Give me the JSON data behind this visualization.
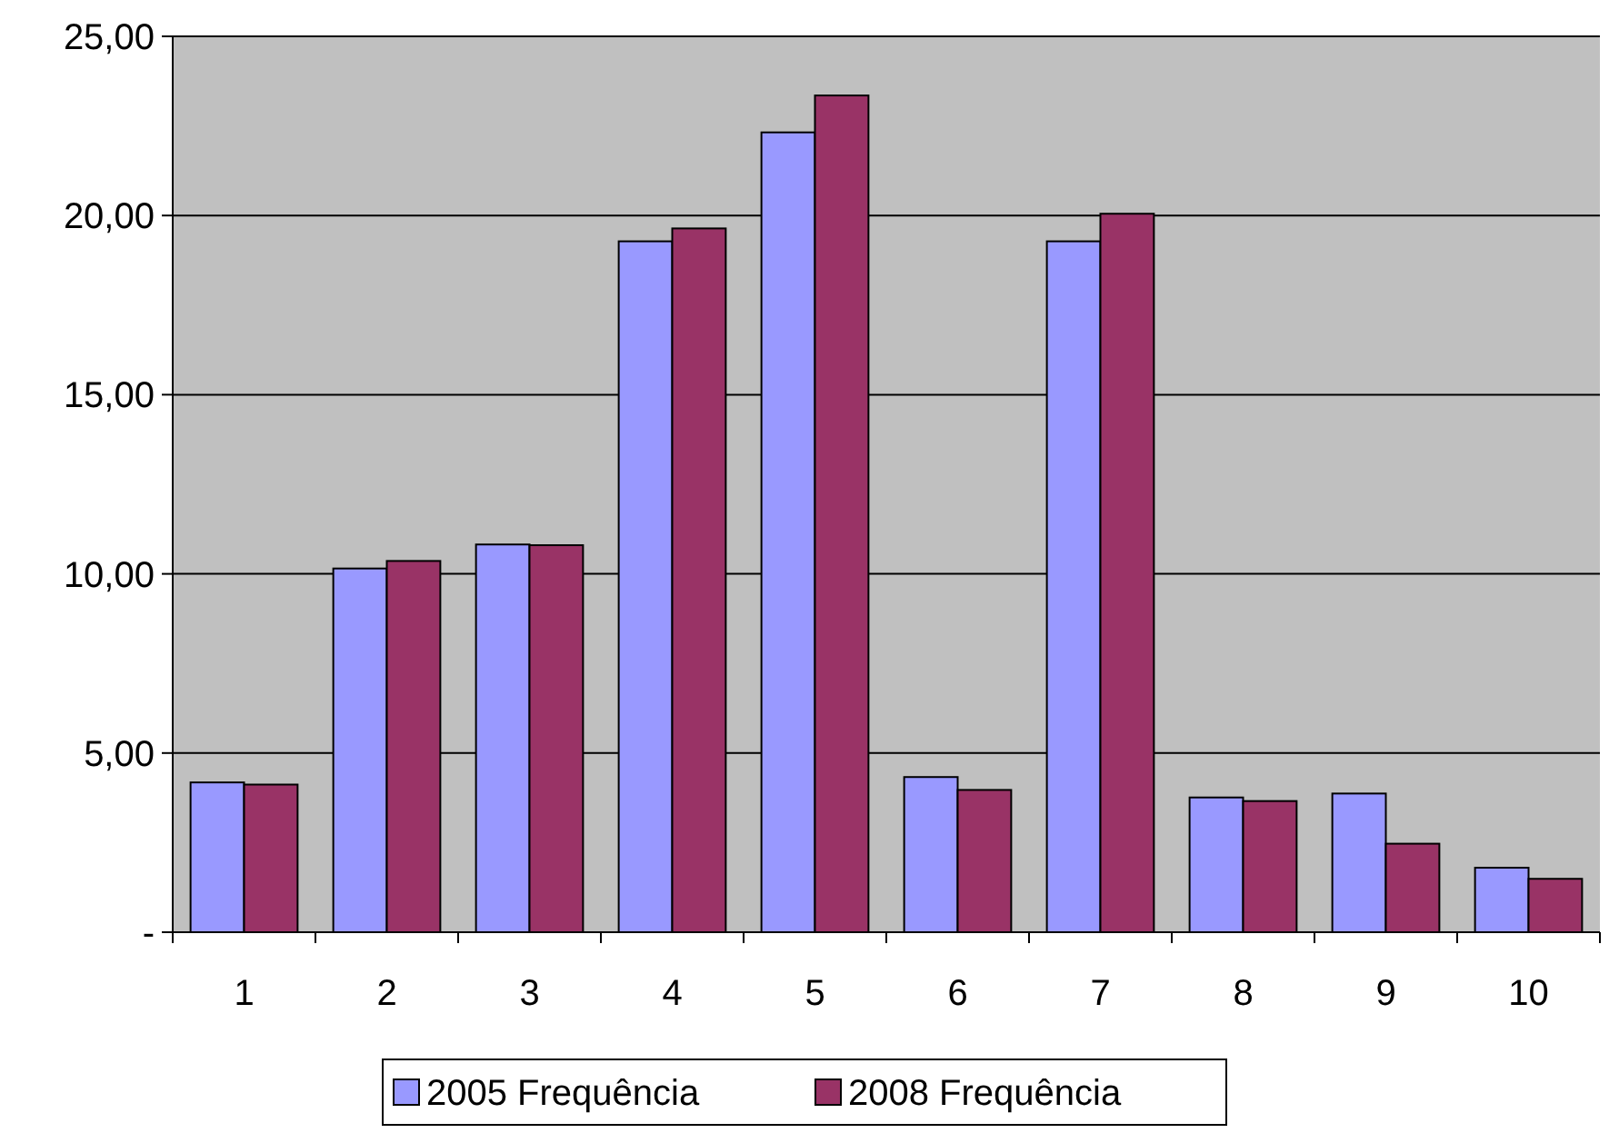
{
  "chart_data": {
    "type": "bar",
    "categories": [
      "1",
      "2",
      "3",
      "4",
      "5",
      "6",
      "7",
      "8",
      "9",
      "10"
    ],
    "series": [
      {
        "name": "2005 Frequência",
        "color": "#9999ff",
        "values": [
          4.18,
          10.15,
          10.82,
          19.28,
          22.32,
          4.33,
          19.28,
          3.76,
          3.87,
          1.8
        ]
      },
      {
        "name": "2008 Frequência",
        "color": "#993366",
        "values": [
          4.12,
          10.36,
          10.8,
          19.64,
          23.35,
          3.97,
          20.05,
          3.66,
          2.47,
          1.49
        ]
      }
    ],
    "ylim": [
      0,
      25
    ],
    "yticks": [
      {
        "value": 0,
        "label": "-"
      },
      {
        "value": 5,
        "label": "5,00"
      },
      {
        "value": 10,
        "label": "10,00"
      },
      {
        "value": 15,
        "label": "15,00"
      },
      {
        "value": 20,
        "label": "20,00"
      },
      {
        "value": 25,
        "label": "25,00"
      }
    ],
    "grid": "y",
    "legend": "bottom"
  }
}
